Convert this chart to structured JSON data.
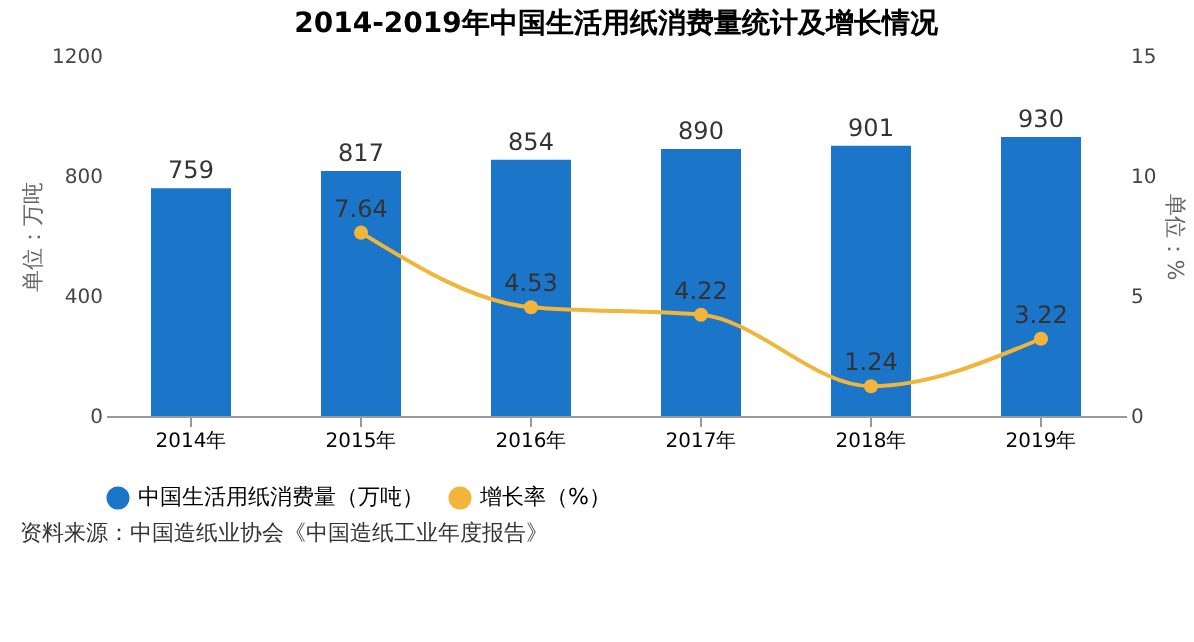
{
  "chart_data": {
    "type": "bar",
    "title": "2014-2019年中国生活用纸消费量统计及增长情况",
    "ylabel": "单位：万吨",
    "y2label": "单位：%",
    "categories": [
      "2014年",
      "2015年",
      "2016年",
      "2017年",
      "2018年",
      "2019年"
    ],
    "series": [
      {
        "name": "中国生活用纸消费量（万吨）",
        "color": "#1b75c9",
        "values": [
          759,
          817,
          854,
          890,
          901,
          930
        ]
      },
      {
        "name": "增长率（%）",
        "type": "line",
        "axis": "y2",
        "color": "#f0b53a",
        "values": [
          null,
          7.64,
          4.53,
          4.22,
          1.24,
          3.22
        ]
      }
    ],
    "ylim": [
      0,
      1200
    ],
    "yticks": [
      0,
      400,
      800,
      1200
    ],
    "y2lim": [
      0,
      15
    ],
    "y2ticks": [
      0,
      5,
      10,
      15
    ],
    "data_labels": true,
    "legend": "bottom",
    "marker": "circle",
    "grid": false,
    "annotations": [
      "资料来源：中国造纸业协会《中国造纸工业年度报告》"
    ]
  }
}
